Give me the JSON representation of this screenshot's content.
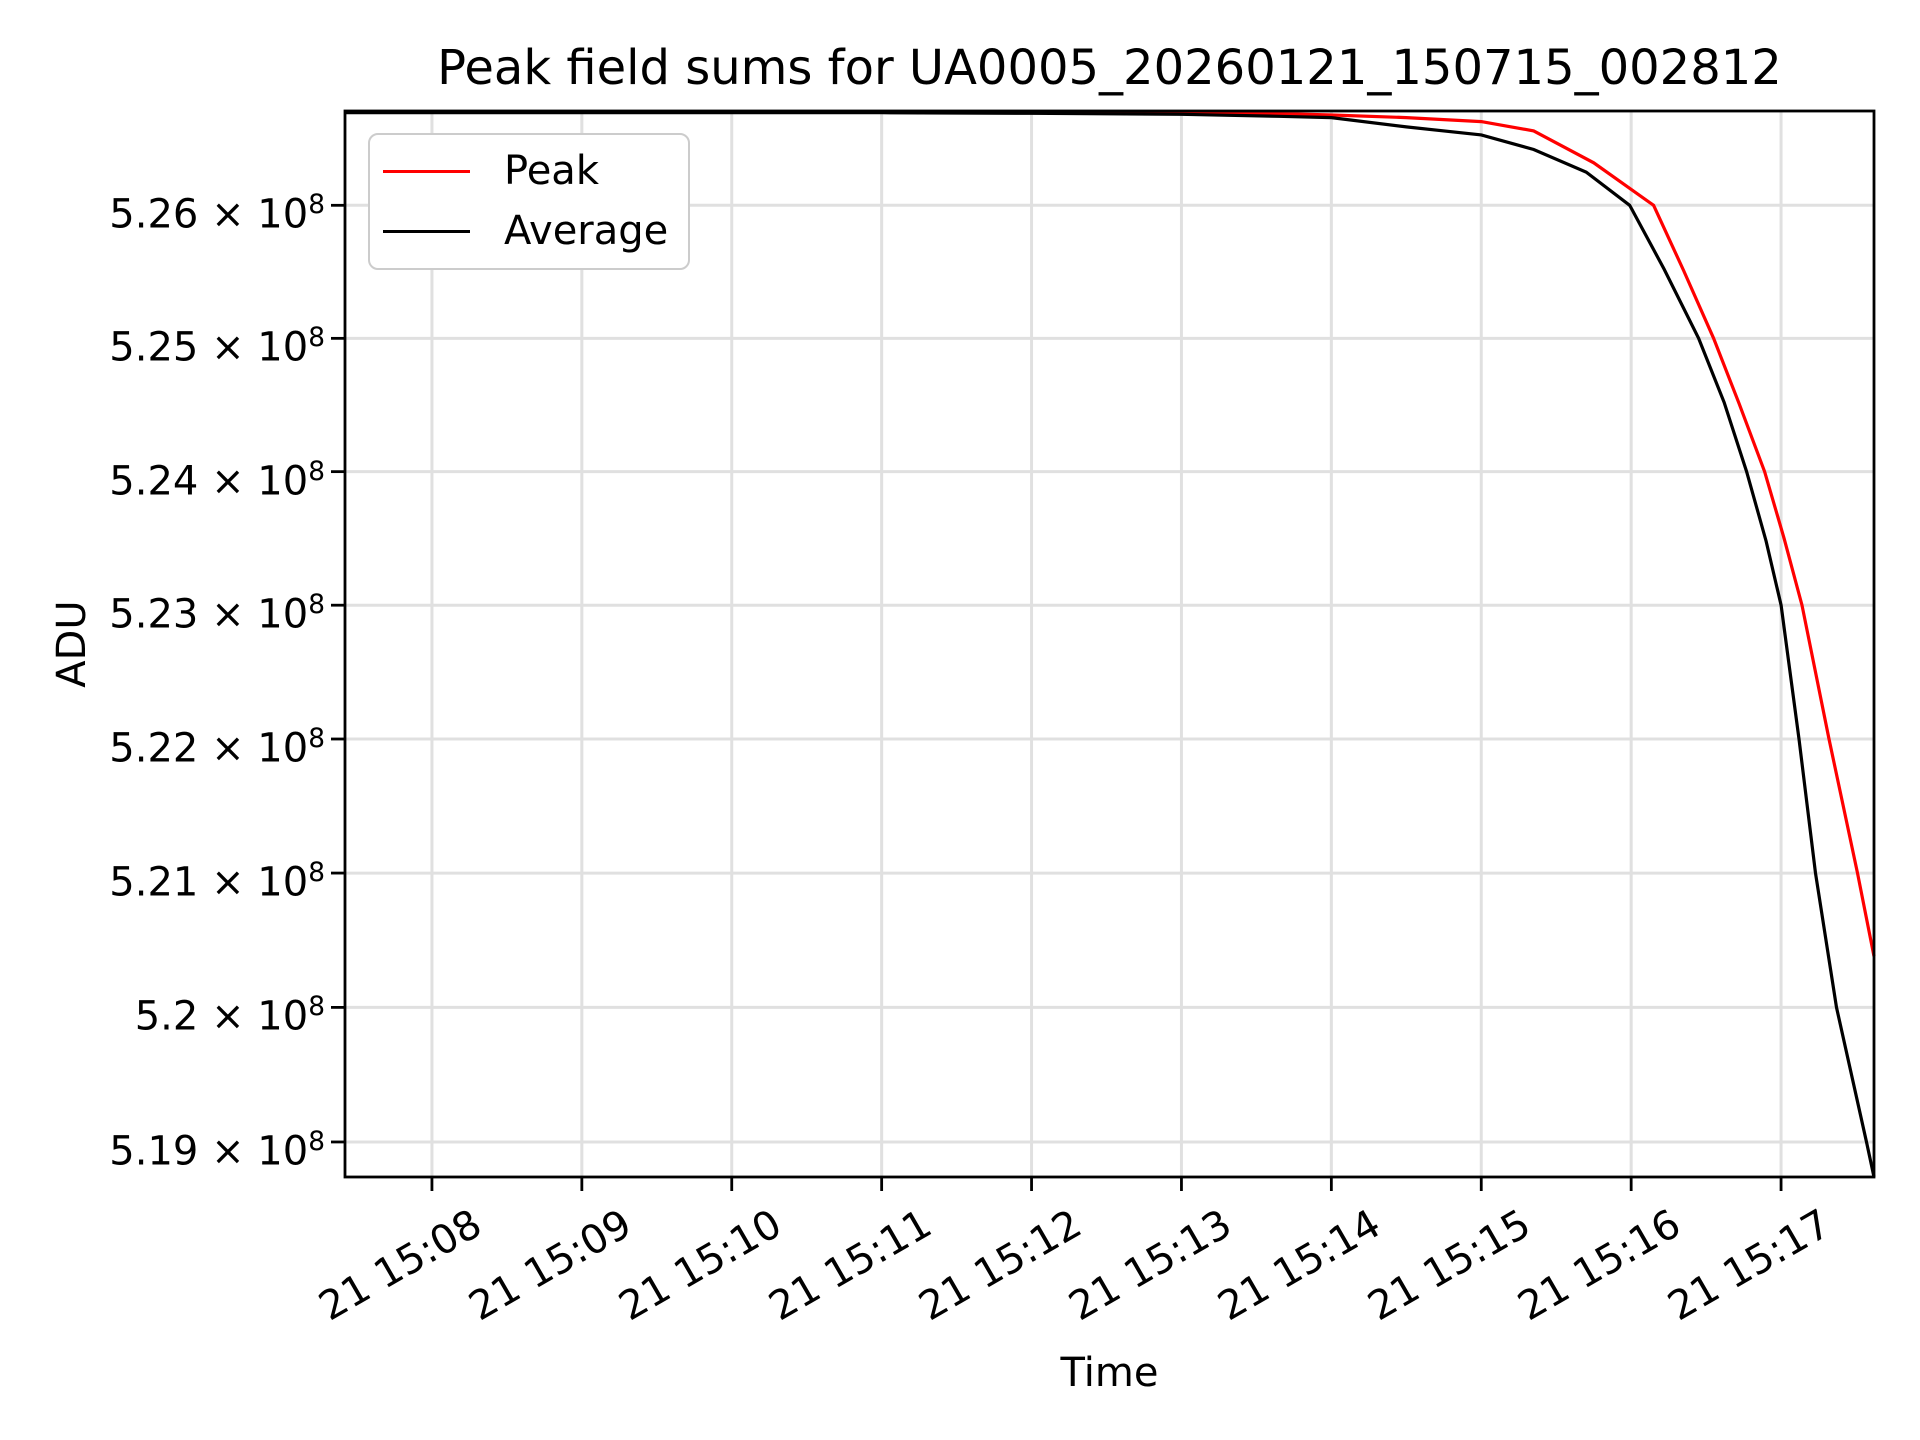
{
  "chart_data": {
    "type": "line",
    "title": "Peak field sums for UA0005_20260121_150715_002812",
    "xlabel": "Time",
    "ylabel": "ADU",
    "yscale": "log",
    "grid": true,
    "grid_color": "#e0e0e0",
    "legend_position": "upper-left",
    "xlim_minutes": [
      7.42,
      17.62
    ],
    "ylim": [
      518740000,
      526710000
    ],
    "xticks": [
      {
        "label": "21 15:08",
        "minute": 8
      },
      {
        "label": "21 15:09",
        "minute": 9
      },
      {
        "label": "21 15:10",
        "minute": 10
      },
      {
        "label": "21 15:11",
        "minute": 11
      },
      {
        "label": "21 15:12",
        "minute": 12
      },
      {
        "label": "21 15:13",
        "minute": 13
      },
      {
        "label": "21 15:14",
        "minute": 14
      },
      {
        "label": "21 15:15",
        "minute": 15
      },
      {
        "label": "21 15:16",
        "minute": 16
      },
      {
        "label": "21 15:17",
        "minute": 17
      }
    ],
    "yticks": [
      {
        "label": "5.26 × 10",
        "exp": "8",
        "value": 526000000
      },
      {
        "label": "5.25 × 10",
        "exp": "8",
        "value": 525000000
      },
      {
        "label": "5.24 × 10",
        "exp": "8",
        "value": 524000000
      },
      {
        "label": "5.23 × 10",
        "exp": "8",
        "value": 523000000
      },
      {
        "label": "5.22 × 10",
        "exp": "8",
        "value": 522000000
      },
      {
        "label": "5.21 × 10",
        "exp": "8",
        "value": 521000000
      },
      {
        "label": "5.2 × 10",
        "exp": "8",
        "value": 520000000
      },
      {
        "label": "5.19 × 10",
        "exp": "8",
        "value": 519000000
      }
    ],
    "series": [
      {
        "name": "Peak",
        "color": "#ff0000",
        "points": [
          [
            7.42,
            526705000
          ],
          [
            12.0,
            526705000
          ],
          [
            13.0,
            526700000
          ],
          [
            13.5,
            526695000
          ],
          [
            14.0,
            526680000
          ],
          [
            14.5,
            526660000
          ],
          [
            15.0,
            526630000
          ],
          [
            15.35,
            526560000
          ],
          [
            15.75,
            526320000
          ],
          [
            16.15,
            526000000
          ],
          [
            16.35,
            525510000
          ],
          [
            16.55,
            525000000
          ],
          [
            16.72,
            524510000
          ],
          [
            16.89,
            524000000
          ],
          [
            17.02,
            523500000
          ],
          [
            17.14,
            523000000
          ],
          [
            17.32,
            522000000
          ],
          [
            17.51,
            521000000
          ],
          [
            17.62,
            520380000
          ]
        ]
      },
      {
        "name": "Average",
        "color": "#000000",
        "points": [
          [
            7.42,
            526697000
          ],
          [
            11.0,
            526697000
          ],
          [
            12.0,
            526693000
          ],
          [
            13.0,
            526685000
          ],
          [
            13.65,
            526670000
          ],
          [
            14.0,
            526660000
          ],
          [
            14.5,
            526590000
          ],
          [
            15.0,
            526530000
          ],
          [
            15.35,
            526420000
          ],
          [
            15.7,
            526250000
          ],
          [
            15.99,
            526000000
          ],
          [
            16.22,
            525520000
          ],
          [
            16.45,
            525000000
          ],
          [
            16.62,
            524520000
          ],
          [
            16.77,
            524000000
          ],
          [
            16.9,
            523480000
          ],
          [
            17.0,
            523000000
          ],
          [
            17.12,
            522000000
          ],
          [
            17.23,
            521000000
          ],
          [
            17.37,
            520000000
          ],
          [
            17.57,
            519000000
          ],
          [
            17.62,
            518740000
          ]
        ]
      }
    ]
  }
}
